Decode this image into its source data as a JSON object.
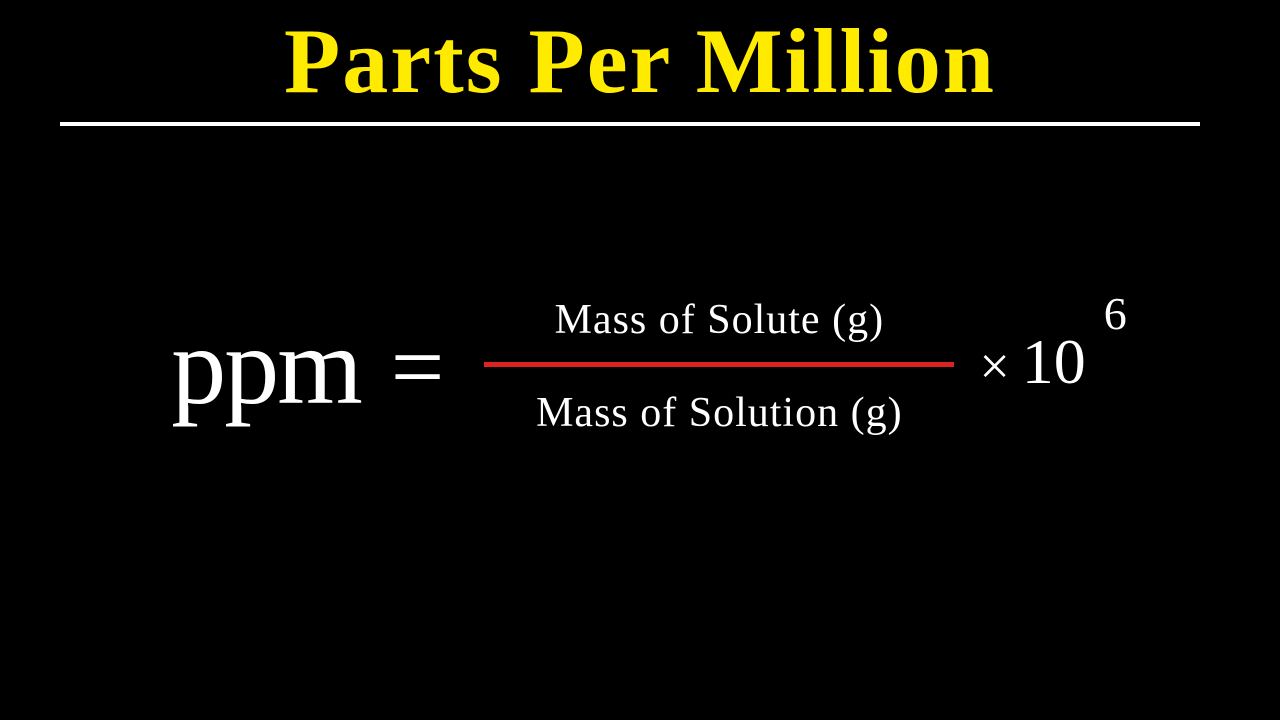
{
  "title": {
    "text": "Parts Per Million",
    "color": "#ffeb00",
    "fontsize": 92,
    "underline_color": "#ffffff"
  },
  "formula": {
    "lhs": "ppm",
    "equals": "=",
    "numerator": "Mass of Solute (g)",
    "denominator": "Mass of Solution (g)",
    "fraction_bar_color": "#dd2222",
    "times_symbol": "×",
    "base": "10",
    "exponent": "6",
    "text_color": "#ffffff"
  },
  "background_color": "#000000"
}
